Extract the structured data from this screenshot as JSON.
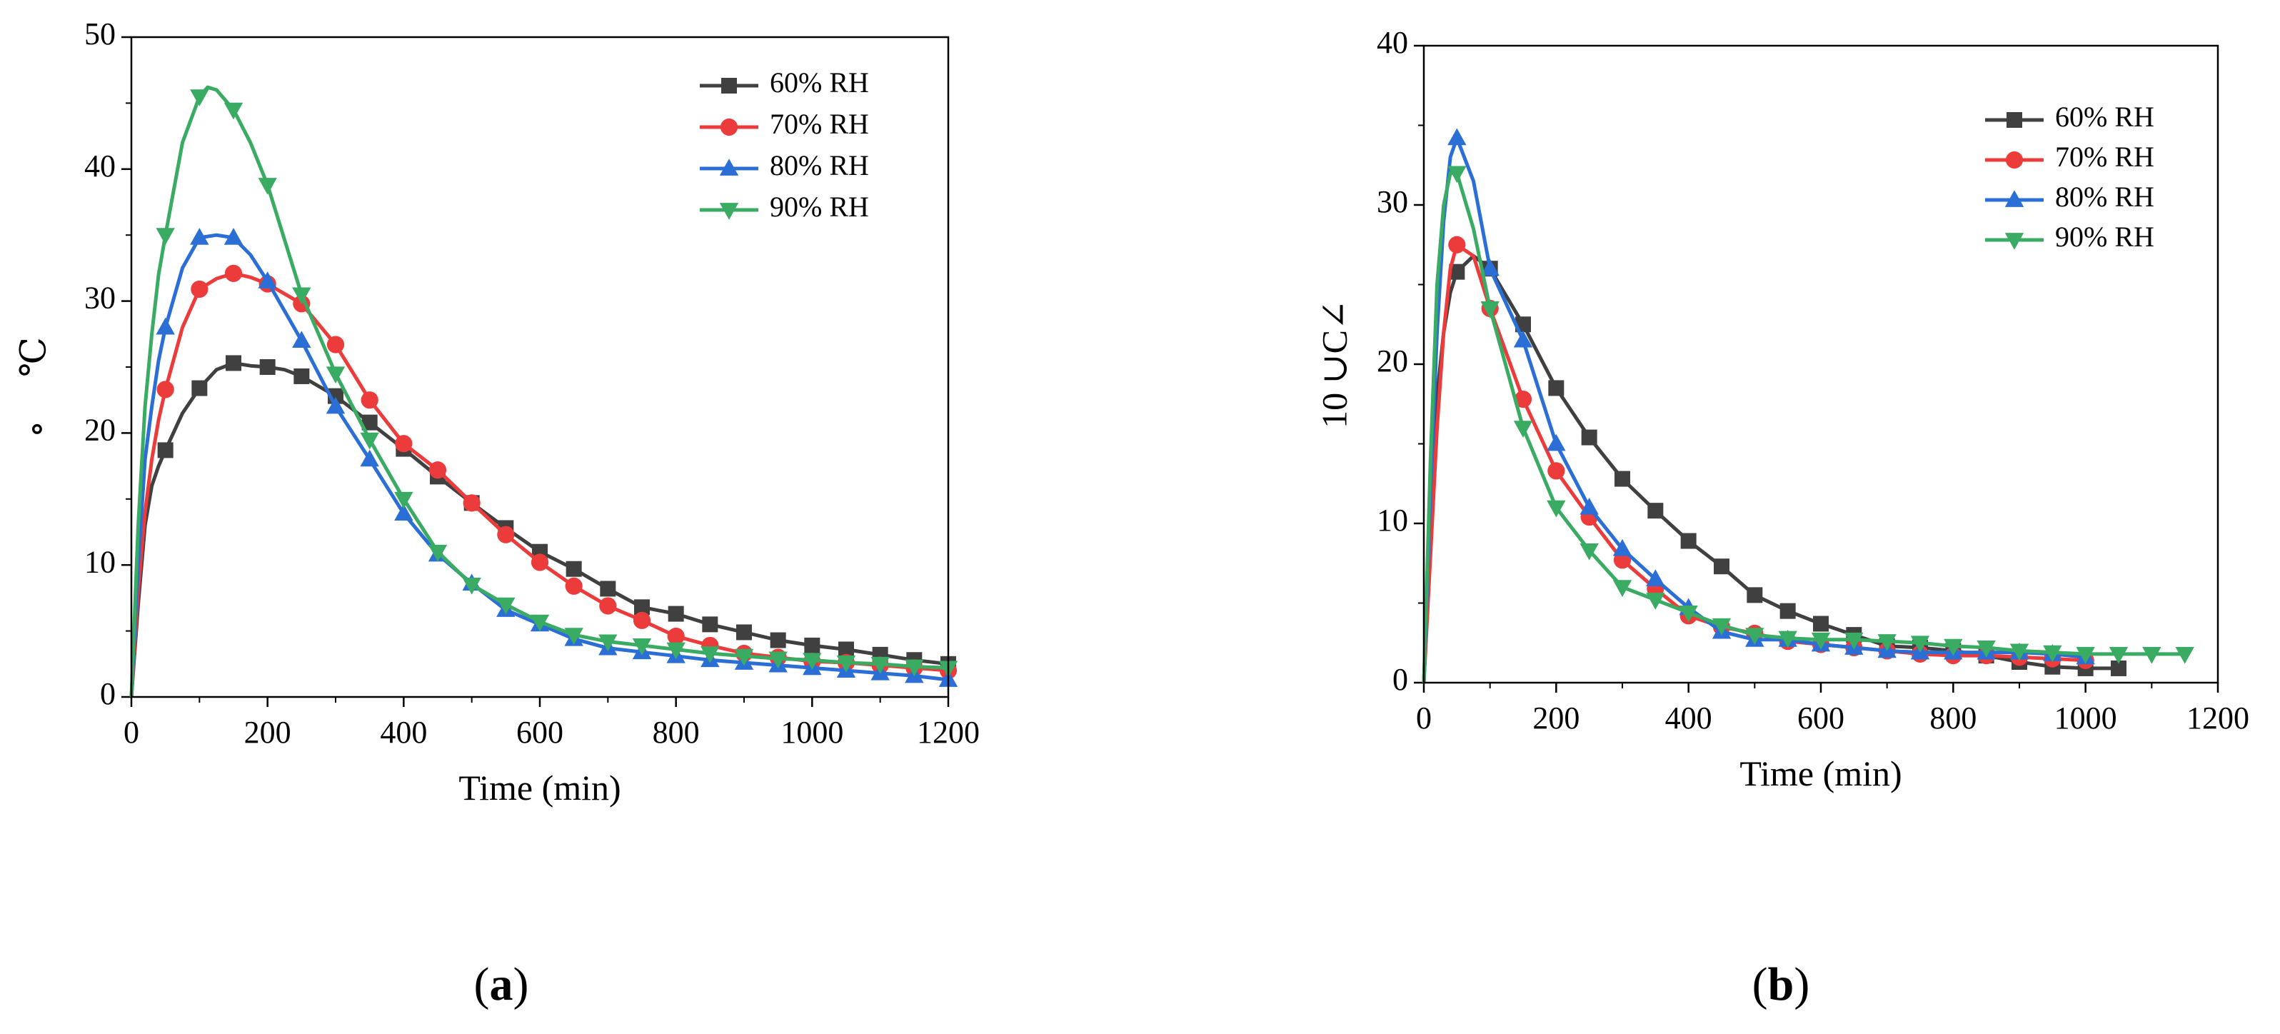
{
  "figure": {
    "panels": [
      "(a)",
      "(b)"
    ]
  },
  "chart_data": [
    {
      "type": "line",
      "panel_label": "a",
      "xlabel": "Time (min)",
      "ylabel": "℃",
      "ylabel_extra": "∘",
      "xlim": [
        0,
        1200
      ],
      "ylim": [
        0,
        50
      ],
      "xticks": [
        0,
        200,
        400,
        600,
        800,
        1000,
        1200
      ],
      "yticks": [
        0,
        10,
        20,
        30,
        40,
        50
      ],
      "legend_position": "top-right",
      "grid": false,
      "series": [
        {
          "name": "60% RH",
          "color": "#404040",
          "marker": "square",
          "x": [
            0,
            10,
            20,
            30,
            40,
            50,
            75,
            100,
            125,
            150,
            175,
            200,
            225,
            250,
            300,
            350,
            400,
            450,
            500,
            550,
            600,
            650,
            700,
            750,
            800,
            850,
            900,
            950,
            1000,
            1050,
            1100,
            1150,
            1200
          ],
          "y": [
            0,
            7,
            13,
            16,
            17.5,
            18.7,
            21.5,
            23.4,
            24.8,
            25.3,
            25.1,
            25.0,
            24.8,
            24.3,
            22.8,
            20.8,
            18.8,
            16.7,
            14.7,
            12.8,
            11.0,
            9.7,
            8.2,
            6.8,
            6.3,
            5.5,
            4.9,
            4.3,
            3.9,
            3.6,
            3.2,
            2.8,
            2.5
          ]
        },
        {
          "name": "70% RH",
          "color": "#ec3b3b",
          "marker": "circle",
          "x": [
            0,
            10,
            20,
            30,
            40,
            50,
            75,
            100,
            125,
            150,
            175,
            200,
            250,
            300,
            350,
            400,
            450,
            500,
            550,
            600,
            650,
            700,
            750,
            800,
            850,
            900,
            950,
            1000,
            1050,
            1100,
            1150,
            1200
          ],
          "y": [
            0,
            8,
            14,
            18,
            21,
            23.3,
            28,
            30.9,
            31.7,
            32.1,
            31.8,
            31.3,
            29.8,
            26.7,
            22.5,
            19.2,
            17.2,
            14.7,
            12.3,
            10.2,
            8.4,
            6.9,
            5.8,
            4.6,
            3.9,
            3.3,
            3.0,
            2.7,
            2.6,
            2.4,
            2.2,
            2.0
          ]
        },
        {
          "name": "80% RH",
          "color": "#2b6fd6",
          "marker": "triangle-up",
          "x": [
            0,
            10,
            20,
            30,
            40,
            50,
            75,
            100,
            125,
            150,
            175,
            200,
            250,
            300,
            350,
            400,
            450,
            500,
            550,
            600,
            650,
            700,
            750,
            800,
            850,
            900,
            950,
            1000,
            1050,
            1100,
            1150,
            1200
          ],
          "y": [
            0,
            10,
            18,
            22,
            25.5,
            28,
            32.5,
            34.8,
            35.0,
            34.8,
            33.5,
            31.5,
            27.0,
            22.0,
            18.0,
            13.9,
            10.8,
            8.6,
            6.6,
            5.5,
            4.4,
            3.7,
            3.4,
            3.1,
            2.8,
            2.6,
            2.4,
            2.2,
            2.0,
            1.8,
            1.6,
            1.3
          ]
        },
        {
          "name": "90% RH",
          "color": "#3aab63",
          "marker": "triangle-down",
          "x": [
            0,
            10,
            20,
            30,
            40,
            50,
            75,
            100,
            112,
            125,
            150,
            175,
            200,
            250,
            300,
            350,
            400,
            450,
            500,
            550,
            600,
            650,
            700,
            750,
            800,
            850,
            900,
            950,
            1000,
            1050,
            1100,
            1150,
            1200
          ],
          "y": [
            0,
            13,
            22,
            27.5,
            32,
            35,
            42,
            45.5,
            46.2,
            46.0,
            44.5,
            42.0,
            38.8,
            30.5,
            24.5,
            19.5,
            15.0,
            11.0,
            8.5,
            7.0,
            5.7,
            4.7,
            4.2,
            3.9,
            3.6,
            3.3,
            3.1,
            2.9,
            2.8,
            2.6,
            2.5,
            2.3,
            2.2
          ]
        }
      ]
    },
    {
      "type": "line",
      "panel_label": "b",
      "xlabel": "Time (min)",
      "ylabel": "10 ∪C∠",
      "xlim": [
        0,
        1200
      ],
      "ylim": [
        0,
        40
      ],
      "xticks": [
        0,
        200,
        400,
        600,
        800,
        1000,
        1200
      ],
      "yticks": [
        0,
        10,
        20,
        30,
        40
      ],
      "legend_position": "top-right",
      "grid": false,
      "series": [
        {
          "name": "60% RH",
          "color": "#404040",
          "marker": "square",
          "x": [
            0,
            10,
            20,
            30,
            40,
            50,
            75,
            100,
            150,
            200,
            250,
            300,
            350,
            400,
            450,
            500,
            550,
            600,
            650,
            700,
            750,
            800,
            850,
            900,
            950,
            1000,
            1050
          ],
          "y": [
            0,
            10,
            18,
            22,
            24.5,
            25.8,
            26.8,
            26.0,
            22.5,
            18.5,
            15.4,
            12.8,
            10.8,
            8.9,
            7.3,
            5.5,
            4.5,
            3.7,
            3.0,
            2.3,
            2.2,
            2.0,
            1.7,
            1.3,
            1.0,
            0.9,
            0.9
          ]
        },
        {
          "name": "70% RH",
          "color": "#ec3b3b",
          "marker": "circle",
          "x": [
            0,
            10,
            20,
            30,
            40,
            50,
            75,
            100,
            150,
            200,
            250,
            300,
            350,
            400,
            450,
            500,
            550,
            600,
            650,
            700,
            750,
            800,
            850,
            900,
            950,
            1000
          ],
          "y": [
            0,
            8,
            16,
            22,
            26,
            27.5,
            26.8,
            23.5,
            17.8,
            13.3,
            10.4,
            7.7,
            5.9,
            4.2,
            3.5,
            3.1,
            2.6,
            2.4,
            2.2,
            2.0,
            1.8,
            1.7,
            1.7,
            1.6,
            1.5,
            1.4
          ]
        },
        {
          "name": "80% RH",
          "color": "#2b6fd6",
          "marker": "triangle-up",
          "x": [
            0,
            10,
            20,
            30,
            40,
            50,
            75,
            100,
            150,
            200,
            250,
            300,
            350,
            400,
            450,
            500,
            550,
            600,
            650,
            700,
            750,
            800,
            850,
            900,
            950,
            1000
          ],
          "y": [
            0,
            12,
            22,
            29,
            33,
            34.2,
            31.5,
            26.0,
            21.5,
            15.0,
            11.0,
            8.4,
            6.5,
            4.7,
            3.2,
            2.7,
            2.7,
            2.4,
            2.2,
            2.0,
            1.9,
            1.9,
            1.9,
            1.9,
            1.8,
            1.6
          ]
        },
        {
          "name": "90% RH",
          "color": "#3aab63",
          "marker": "triangle-down",
          "x": [
            0,
            10,
            20,
            30,
            40,
            50,
            75,
            100,
            150,
            200,
            250,
            300,
            350,
            400,
            450,
            500,
            550,
            600,
            650,
            700,
            750,
            800,
            850,
            900,
            950,
            1000,
            1050,
            1100,
            1150
          ],
          "y": [
            0,
            14,
            25,
            30,
            32,
            32,
            28.5,
            23.5,
            16.0,
            11.0,
            8.3,
            6.0,
            5.2,
            4.4,
            3.6,
            3.0,
            2.8,
            2.7,
            2.7,
            2.6,
            2.5,
            2.3,
            2.2,
            2.0,
            1.9,
            1.8,
            1.8,
            1.8,
            1.8
          ]
        }
      ]
    }
  ]
}
